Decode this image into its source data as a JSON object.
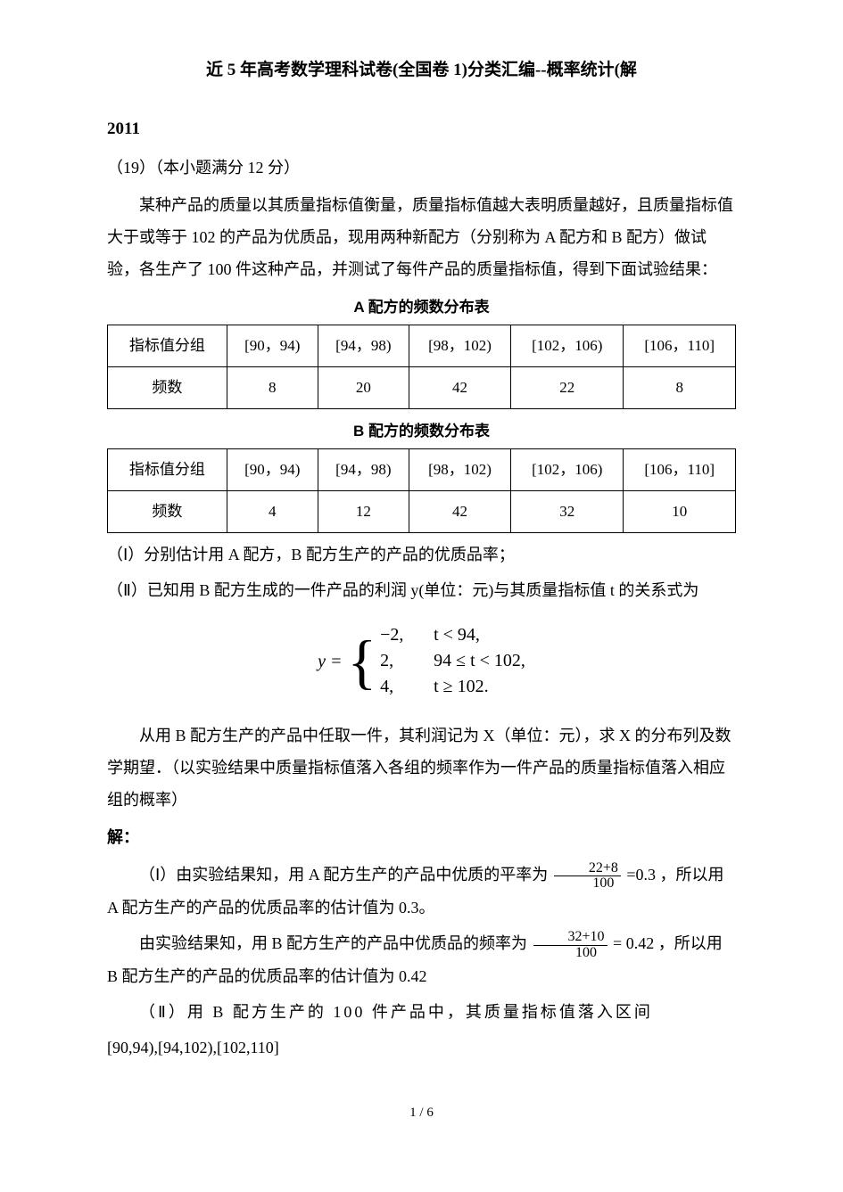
{
  "title": "近 5 年高考数学理科试卷(全国卷 1)分类汇编--概率统计(解",
  "year": "2011",
  "q_num": "（19）（本小题满分 12 分）",
  "para1": "某种产品的质量以其质量指标值衡量，质量指标值越大表明质量越好，且质量指标值大于或等于 102 的产品为优质品，现用两种新配方（分别称为 A 配方和 B 配方）做试验，各生产了 100 件这种产品，并测试了每件产品的质量指标值，得到下面试验结果：",
  "tableA": {
    "caption": "A 配方的频数分布表",
    "header": "指标值分组",
    "groups": [
      "[90，94)",
      "[94，98)",
      "[98，102)",
      "[102，106)",
      "[106，110]"
    ],
    "row_label": "频数",
    "freqs": [
      "8",
      "20",
      "42",
      "22",
      "8"
    ]
  },
  "tableB": {
    "caption": "B 配方的频数分布表",
    "header": "指标值分组",
    "groups": [
      "[90，94)",
      "[94，98)",
      "[98，102)",
      "[102，106)",
      "[106，110]"
    ],
    "row_label": "频数",
    "freqs": [
      "4",
      "12",
      "42",
      "32",
      "10"
    ]
  },
  "q_part1": "（Ⅰ）分别估计用 A 配方，B 配方生产的产品的优质品率；",
  "q_part2a": "（Ⅱ）已知用 B 配方生成的一件产品的利润 y(单位：元)与其质量指标值 t 的关系式为",
  "formula": {
    "lhs": "y =",
    "r1a": "−2,",
    "r1b": "t < 94,",
    "r2a": "2,",
    "r2b": "94 ≤ t < 102,",
    "r3a": "4,",
    "r3b": "t ≥ 102."
  },
  "q_part2b": "从用 B 配方生产的产品中任取一件，其利润记为 X（单位：元），求 X 的分布列及数学期望．（以实验结果中质量指标值落入各组的频率作为一件产品的质量指标值落入相应组的概率）",
  "sol_head": "解：",
  "sol1_pre": "（Ⅰ）由实验结果知，用 A 配方生产的产品中优质的平率为",
  "frac1": {
    "num": "22+8",
    "den": "100"
  },
  "sol1_mid": "=0.3 ，所以用 A 配方生产的产品的优质品率的估计值为 0.3。",
  "sol2_pre": "由实验结果知，用 B 配方生产的产品中优质品的频率为",
  "frac2": {
    "num": "32+10",
    "den": "100"
  },
  "sol2_mid": "= 0.42 ，所以用 B 配方生产的产品的优质品率的估计值为 0.42",
  "sol3": "（Ⅱ）用 B 配方生产的 100 件产品中，其质量指标值落入区间",
  "sol3_intervals": "[90,94),[94,102),[102,110]",
  "page": "1 / 6"
}
